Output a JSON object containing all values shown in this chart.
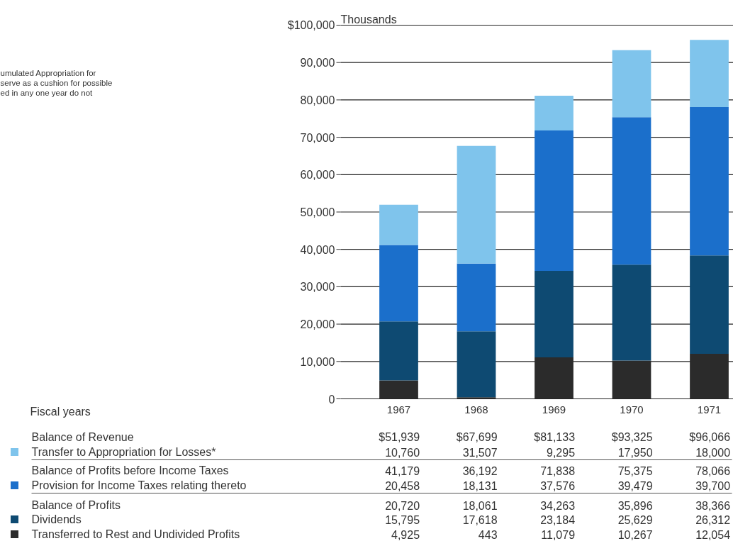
{
  "chart_data": {
    "type": "bar",
    "stacked": true,
    "ylabel": "Thousands",
    "categories": [
      "1967",
      "1968",
      "1969",
      "1970",
      "1971"
    ],
    "ylim": [
      0,
      100000
    ],
    "yticks": [
      0,
      {
        "value": 10000,
        "label": "10,000"
      },
      {
        "value": 20000,
        "label": "20,000"
      },
      {
        "value": 30000,
        "label": "30,000"
      },
      {
        "value": 40000,
        "label": "40,000"
      },
      {
        "value": 50000,
        "label": "50,000"
      },
      {
        "value": 60000,
        "label": "60,000"
      },
      {
        "value": 70000,
        "label": "70,000"
      },
      {
        "value": 80000,
        "label": "80,000"
      },
      {
        "value": 90000,
        "label": "90,000"
      },
      {
        "value": 100000,
        "label": "$100,000"
      }
    ],
    "grid": "y",
    "legend": "bottom",
    "series": [
      {
        "name": "Transferred to Rest and Undivided Profits",
        "color": "#2b2b2b",
        "values": [
          4925,
          443,
          11079,
          10267,
          12054
        ],
        "value_labels": [
          "4,925",
          "443",
          "11,079",
          "10,267",
          "12,054"
        ]
      },
      {
        "name": "Dividends",
        "color": "#0e4a72",
        "values": [
          15795,
          17618,
          23184,
          25629,
          26312
        ],
        "value_labels": [
          "15,795",
          "17,618",
          "23,184",
          "25,629",
          "26,312"
        ]
      },
      {
        "name": "Provision for Income Taxes relating thereto",
        "color": "#1b6fcb",
        "values": [
          20458,
          18131,
          37576,
          39479,
          39700
        ],
        "value_labels": [
          "20,458",
          "18,131",
          "37,576",
          "39,479",
          "39,700"
        ]
      },
      {
        "name": "Transfer to Appropriation for Losses*",
        "color": "#7fc4ec",
        "values": [
          10760,
          31507,
          9295,
          17950,
          18000
        ],
        "value_labels": [
          "10,760",
          "31,507",
          "9,295",
          "17,950",
          "18,000"
        ]
      }
    ],
    "totals": [
      "$51,939",
      "$67,699",
      "$81,133",
      "$93,325",
      "$96,066"
    ],
    "annotations": [
      "umulated Appropriation for\nserve as a cushion for possible\ned in any one year do not",
      "Fiscal years",
      "Balance of Revenue",
      "Balance of Profits before Income Taxes",
      "Balance of Profits",
      "41,179",
      "36,192",
      "71,838",
      "75,375",
      "78,066",
      "20,720",
      "18,061",
      "34,263",
      "35,896",
      "38,366"
    ]
  }
}
